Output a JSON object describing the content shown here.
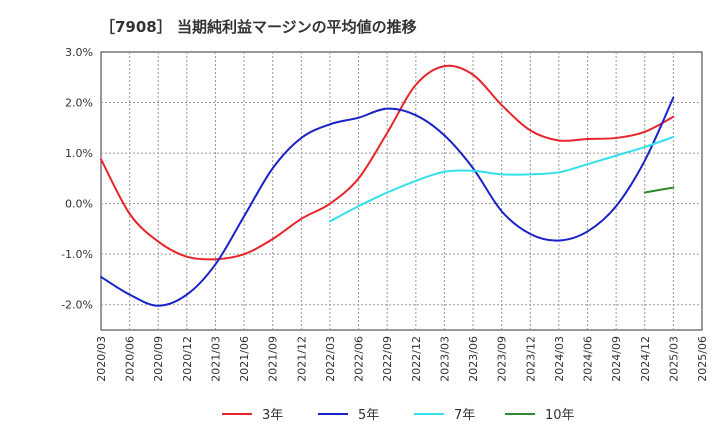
{
  "chart_data": {
    "type": "line",
    "title": "［7908］ 当期純利益マージンの平均値の推移",
    "xlabel": "",
    "ylabel": "",
    "ylim": [
      -2.5,
      3.0
    ],
    "xlim": [
      "2020/03",
      "2025/06"
    ],
    "grid": true,
    "legend_position": "bottom",
    "y_ticks": [
      {
        "value": 3.0,
        "label": "3.0%"
      },
      {
        "value": 2.0,
        "label": "2.0%"
      },
      {
        "value": 1.0,
        "label": "1.0%"
      },
      {
        "value": 0.0,
        "label": "0.0%"
      },
      {
        "value": -1.0,
        "label": "-1.0%"
      },
      {
        "value": -2.0,
        "label": "-2.0%"
      }
    ],
    "x_ticks": [
      "2020/03",
      "2020/06",
      "2020/09",
      "2020/12",
      "2021/03",
      "2021/06",
      "2021/09",
      "2021/12",
      "2022/03",
      "2022/06",
      "2022/09",
      "2022/12",
      "2023/03",
      "2023/06",
      "2023/09",
      "2023/12",
      "2024/03",
      "2024/06",
      "2024/09",
      "2024/12",
      "2025/03",
      "2025/06"
    ],
    "series": [
      {
        "name": "3年",
        "color": "#e8242b",
        "values": [
          [
            "2020/03",
            0.88
          ],
          [
            "2020/06",
            -0.2
          ],
          [
            "2020/09",
            -0.75
          ],
          [
            "2020/12",
            -1.05
          ],
          [
            "2021/03",
            -1.1
          ],
          [
            "2021/06",
            -1.0
          ],
          [
            "2021/09",
            -0.7
          ],
          [
            "2021/12",
            -0.3
          ],
          [
            "2022/03",
            0.0
          ],
          [
            "2022/06",
            0.5
          ],
          [
            "2022/09",
            1.4
          ],
          [
            "2022/12",
            2.35
          ],
          [
            "2023/03",
            2.72
          ],
          [
            "2023/06",
            2.55
          ],
          [
            "2023/09",
            1.95
          ],
          [
            "2023/12",
            1.45
          ],
          [
            "2024/03",
            1.25
          ],
          [
            "2024/06",
            1.28
          ],
          [
            "2024/09",
            1.3
          ],
          [
            "2024/12",
            1.42
          ],
          [
            "2025/03",
            1.72
          ]
        ]
      },
      {
        "name": "5年",
        "color": "#1a23c8",
        "values": [
          [
            "2020/03",
            -1.45
          ],
          [
            "2020/06",
            -1.8
          ],
          [
            "2020/09",
            -2.02
          ],
          [
            "2020/12",
            -1.8
          ],
          [
            "2021/03",
            -1.2
          ],
          [
            "2021/06",
            -0.25
          ],
          [
            "2021/09",
            0.7
          ],
          [
            "2021/12",
            1.3
          ],
          [
            "2022/03",
            1.57
          ],
          [
            "2022/06",
            1.7
          ],
          [
            "2022/09",
            1.88
          ],
          [
            "2022/12",
            1.75
          ],
          [
            "2023/03",
            1.35
          ],
          [
            "2023/06",
            0.7
          ],
          [
            "2023/09",
            -0.15
          ],
          [
            "2023/12",
            -0.6
          ],
          [
            "2024/03",
            -0.73
          ],
          [
            "2024/06",
            -0.55
          ],
          [
            "2024/09",
            -0.05
          ],
          [
            "2024/12",
            0.85
          ],
          [
            "2025/03",
            2.1
          ]
        ]
      },
      {
        "name": "7年",
        "color": "#33e0ea",
        "values": [
          [
            "2022/03",
            -0.35
          ],
          [
            "2022/06",
            -0.05
          ],
          [
            "2022/09",
            0.22
          ],
          [
            "2022/12",
            0.45
          ],
          [
            "2023/03",
            0.63
          ],
          [
            "2023/06",
            0.65
          ],
          [
            "2023/09",
            0.58
          ],
          [
            "2023/12",
            0.58
          ],
          [
            "2024/03",
            0.62
          ],
          [
            "2024/06",
            0.78
          ],
          [
            "2024/09",
            0.95
          ],
          [
            "2024/12",
            1.12
          ],
          [
            "2025/03",
            1.32
          ]
        ]
      },
      {
        "name": "10年",
        "color": "#2e8b2e",
        "values": [
          [
            "2024/12",
            0.22
          ],
          [
            "2025/03",
            0.32
          ]
        ]
      }
    ]
  }
}
